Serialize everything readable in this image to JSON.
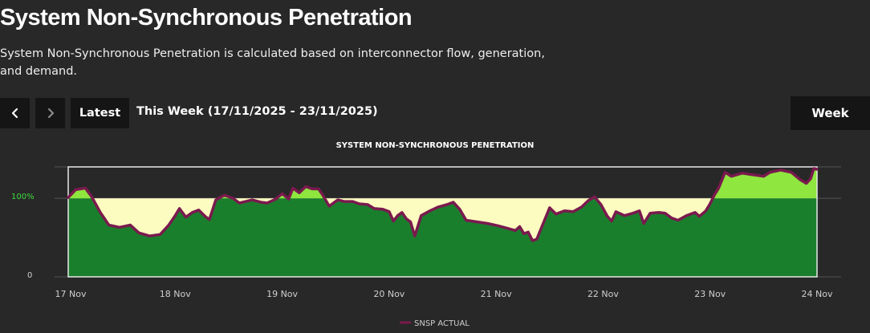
{
  "page": {
    "title": "System Non-Synchronous Penetration",
    "description": "System Non-Synchronous Penetration is calculated based on interconnector flow, generation, and demand."
  },
  "toolbar": {
    "prev_icon": "chevron-left-icon",
    "next_icon": "chevron-right-icon",
    "latest_label": "Latest",
    "range_label": "This Week (17/11/2025 - 23/11/2025)",
    "period_label": "Week"
  },
  "colors": {
    "background": "#282828",
    "button_bg": "#151515",
    "line": "#7a1a4e",
    "fill_below": "#1a7f2c",
    "fill_gap": "#fdfcc0",
    "fill_above": "#8ee63e",
    "ref_label": "#3ddc3d"
  },
  "chart_data": {
    "type": "area",
    "title": "SYSTEM NON-SYNCHRONOUS PENETRATION",
    "xlabel": "",
    "ylabel": "",
    "x_unit": "days from 17 Nov",
    "xlim": [
      0,
      7
    ],
    "ylim": [
      0,
      140
    ],
    "reference_line": {
      "value": 100,
      "label": "100%"
    },
    "y_ticks": [
      {
        "value": 0,
        "label": "0"
      },
      {
        "value": 100,
        "label": "100%"
      }
    ],
    "x_ticks": [
      {
        "value": 0,
        "label": "17 Nov"
      },
      {
        "value": 1,
        "label": "18 Nov"
      },
      {
        "value": 2,
        "label": "19 Nov"
      },
      {
        "value": 3,
        "label": "20 Nov"
      },
      {
        "value": 4,
        "label": "21 Nov"
      },
      {
        "value": 5,
        "label": "22 Nov"
      },
      {
        "value": 6,
        "label": "23 Nov"
      },
      {
        "value": 7,
        "label": "24 Nov"
      }
    ],
    "legend": {
      "position": "bottom-center",
      "entries": [
        "SNSP ACTUAL"
      ]
    },
    "series": [
      {
        "name": "SNSP ACTUAL",
        "points": [
          [
            0.0,
            101
          ],
          [
            0.07,
            111
          ],
          [
            0.16,
            113
          ],
          [
            0.22,
            102
          ],
          [
            0.3,
            82
          ],
          [
            0.38,
            66
          ],
          [
            0.48,
            63
          ],
          [
            0.58,
            66
          ],
          [
            0.66,
            56
          ],
          [
            0.76,
            52
          ],
          [
            0.86,
            54
          ],
          [
            0.94,
            66
          ],
          [
            1.0,
            78
          ],
          [
            1.04,
            87
          ],
          [
            1.1,
            76
          ],
          [
            1.16,
            82
          ],
          [
            1.22,
            85
          ],
          [
            1.28,
            77
          ],
          [
            1.32,
            73
          ],
          [
            1.38,
            98
          ],
          [
            1.46,
            104
          ],
          [
            1.54,
            100
          ],
          [
            1.6,
            94
          ],
          [
            1.66,
            96
          ],
          [
            1.72,
            98
          ],
          [
            1.8,
            95
          ],
          [
            1.86,
            94
          ],
          [
            1.94,
            99
          ],
          [
            2.0,
            106
          ],
          [
            2.06,
            99
          ],
          [
            2.1,
            113
          ],
          [
            2.16,
            107
          ],
          [
            2.22,
            115
          ],
          [
            2.28,
            112
          ],
          [
            2.34,
            112
          ],
          [
            2.38,
            104
          ],
          [
            2.44,
            90
          ],
          [
            2.52,
            98
          ],
          [
            2.58,
            96
          ],
          [
            2.66,
            96
          ],
          [
            2.72,
            93
          ],
          [
            2.8,
            92
          ],
          [
            2.86,
            87
          ],
          [
            2.94,
            86
          ],
          [
            3.0,
            83
          ],
          [
            3.04,
            71
          ],
          [
            3.08,
            78
          ],
          [
            3.12,
            82
          ],
          [
            3.16,
            74
          ],
          [
            3.2,
            70
          ],
          [
            3.24,
            52
          ],
          [
            3.3,
            78
          ],
          [
            3.38,
            84
          ],
          [
            3.46,
            89
          ],
          [
            3.54,
            92
          ],
          [
            3.6,
            95
          ],
          [
            3.66,
            86
          ],
          [
            3.72,
            72
          ],
          [
            3.82,
            70
          ],
          [
            3.92,
            68
          ],
          [
            4.02,
            65
          ],
          [
            4.1,
            62
          ],
          [
            4.18,
            59
          ],
          [
            4.22,
            64
          ],
          [
            4.26,
            55
          ],
          [
            4.3,
            57
          ],
          [
            4.34,
            46
          ],
          [
            4.38,
            48
          ],
          [
            4.44,
            68
          ],
          [
            4.5,
            88
          ],
          [
            4.56,
            80
          ],
          [
            4.64,
            84
          ],
          [
            4.72,
            83
          ],
          [
            4.8,
            89
          ],
          [
            4.86,
            97
          ],
          [
            4.92,
            102
          ],
          [
            4.98,
            92
          ],
          [
            5.04,
            77
          ],
          [
            5.08,
            71
          ],
          [
            5.12,
            83
          ],
          [
            5.2,
            78
          ],
          [
            5.28,
            81
          ],
          [
            5.34,
            84
          ],
          [
            5.38,
            68
          ],
          [
            5.44,
            81
          ],
          [
            5.52,
            82
          ],
          [
            5.58,
            81
          ],
          [
            5.64,
            75
          ],
          [
            5.7,
            72
          ],
          [
            5.78,
            78
          ],
          [
            5.86,
            82
          ],
          [
            5.9,
            77
          ],
          [
            5.96,
            84
          ],
          [
            6.0,
            93
          ],
          [
            6.04,
            104
          ],
          [
            6.08,
            113
          ],
          [
            6.14,
            133
          ],
          [
            6.2,
            128
          ],
          [
            6.3,
            132
          ],
          [
            6.4,
            130
          ],
          [
            6.5,
            128
          ],
          [
            6.56,
            133
          ],
          [
            6.66,
            136
          ],
          [
            6.76,
            133
          ],
          [
            6.84,
            124
          ],
          [
            6.9,
            119
          ],
          [
            6.94,
            125
          ],
          [
            6.97,
            138
          ],
          [
            7.0,
            137
          ]
        ]
      }
    ]
  }
}
